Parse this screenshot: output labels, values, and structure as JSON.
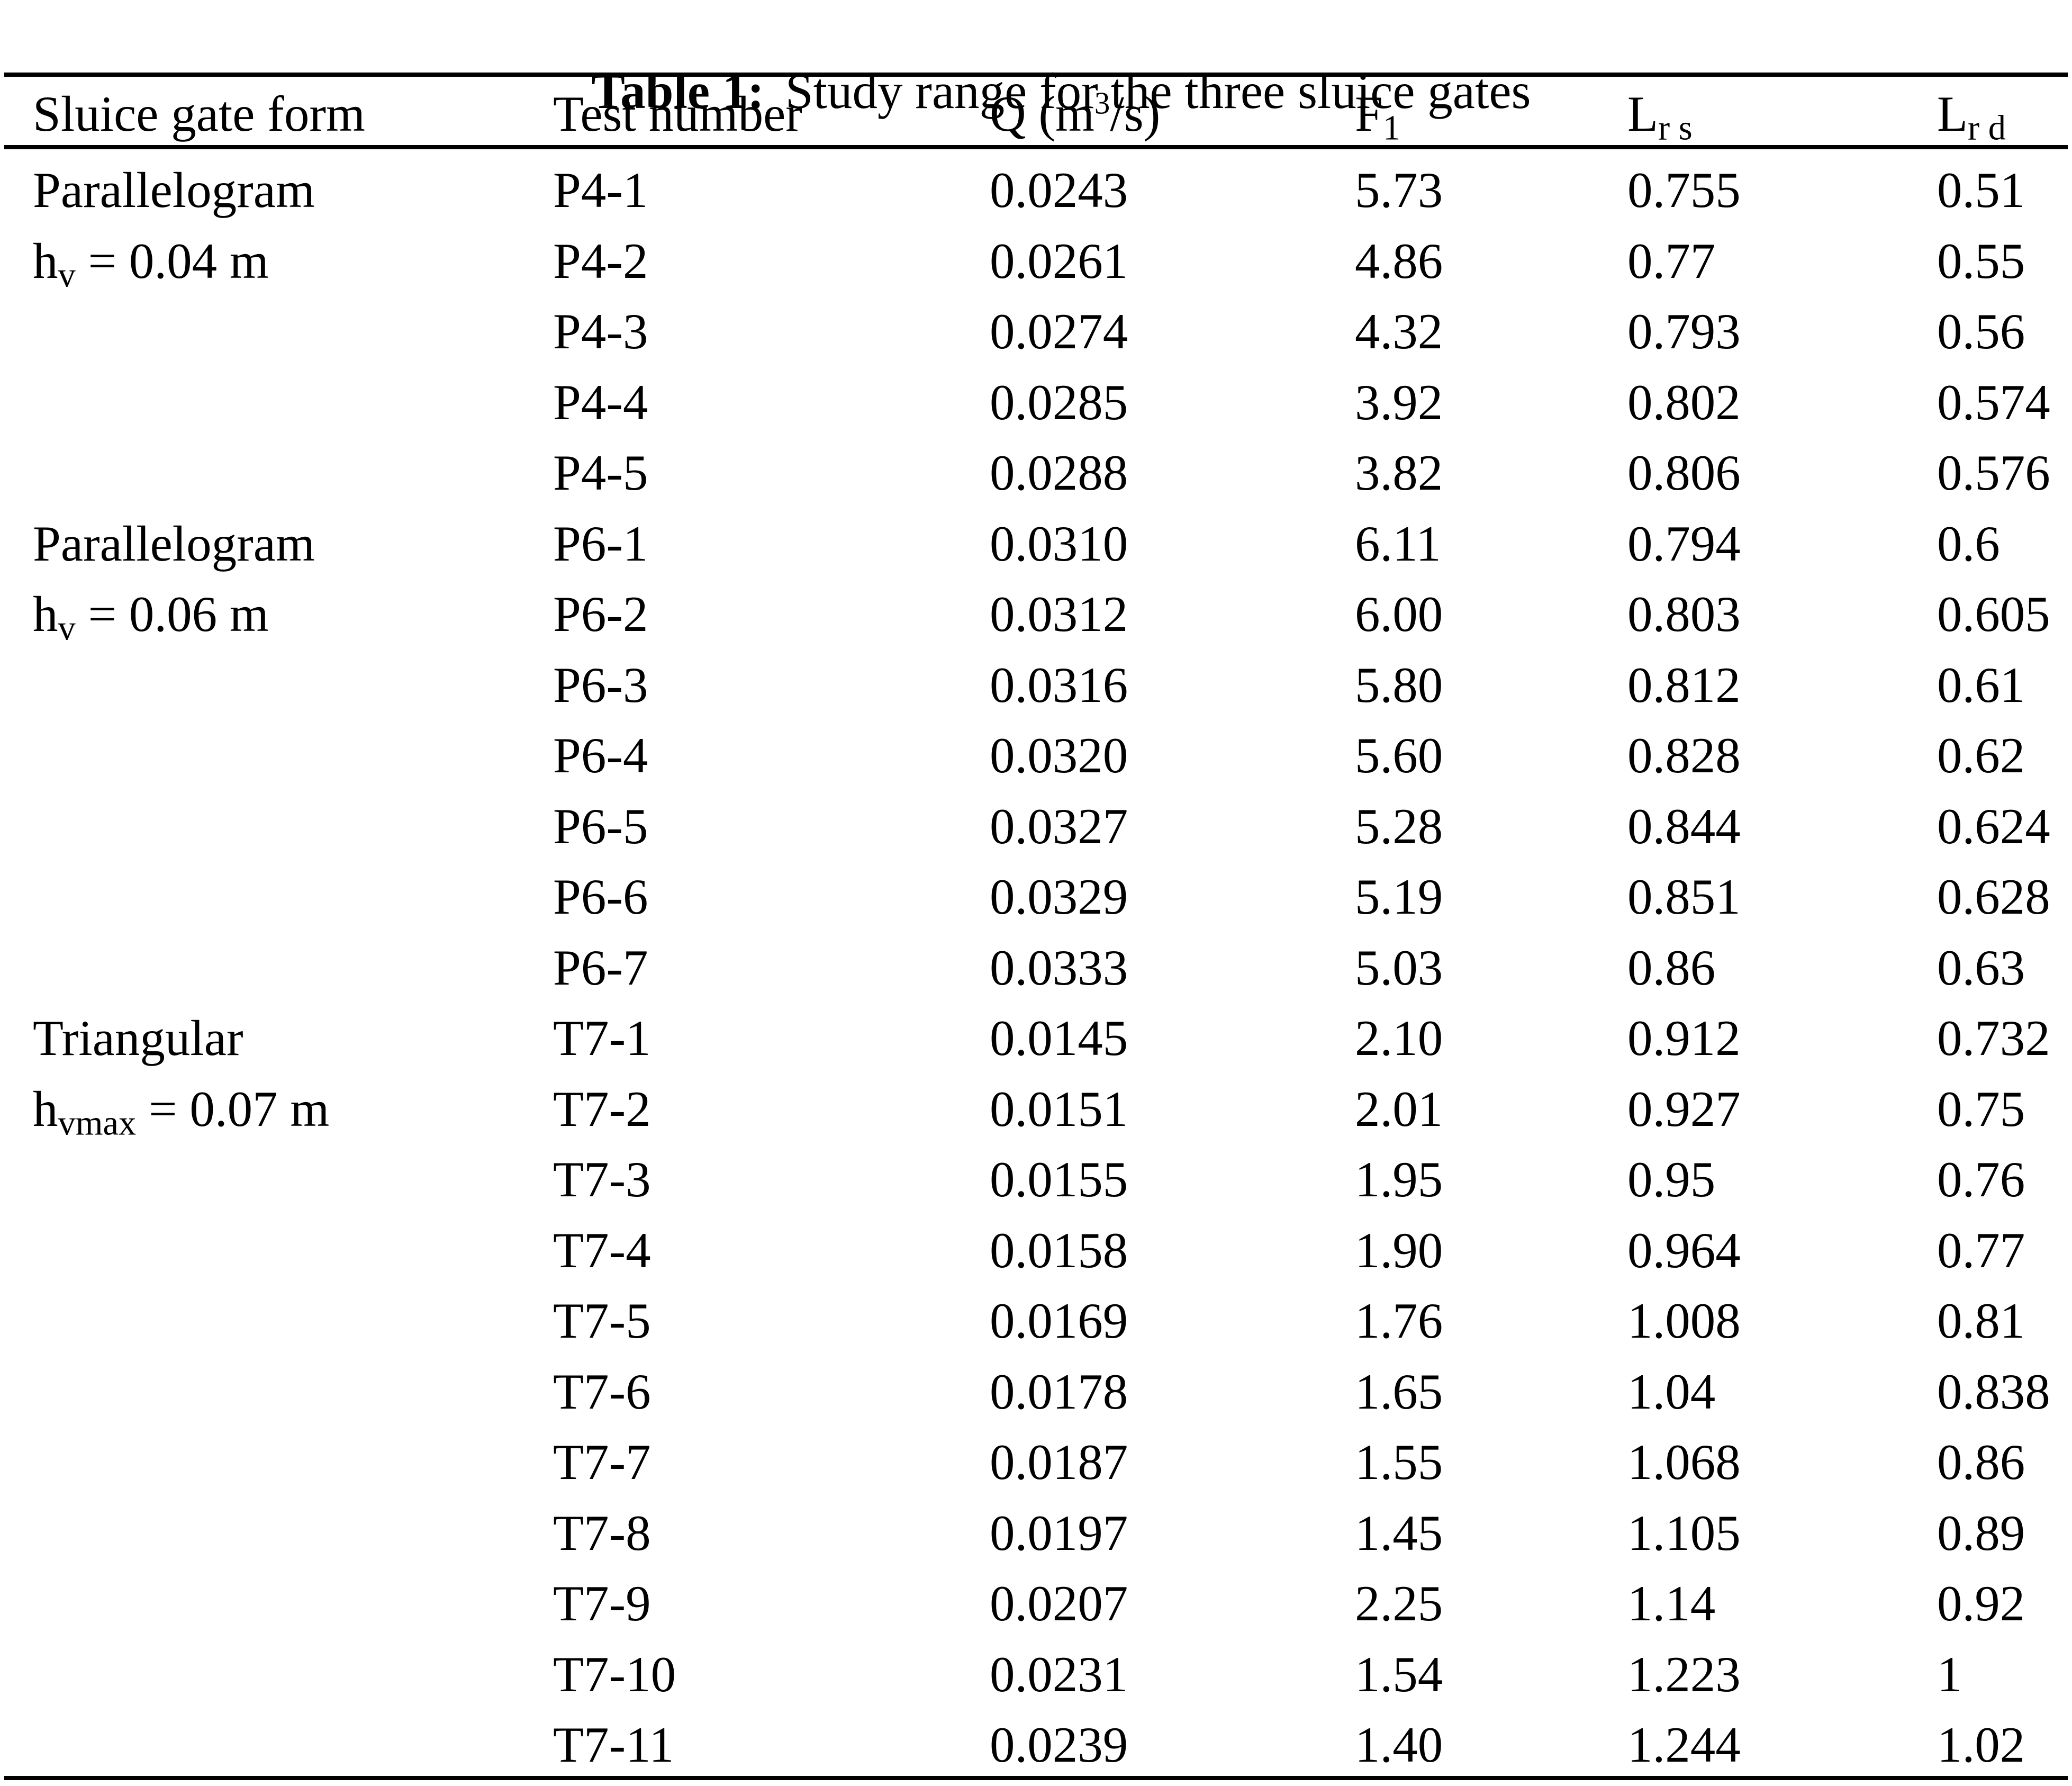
{
  "colors": {
    "background": "#ffffff",
    "text": "#000000",
    "rule": "#000000"
  },
  "title": {
    "label": "Table 1:",
    "text": "Study range for the three sluice gates"
  },
  "table": {
    "header": {
      "form": "Sluice gate form",
      "test": "Test number",
      "q_pre": "Q (m",
      "q_sup": "3",
      "q_post": "/s)",
      "f_base": "F",
      "f_sub": "1",
      "l_base": "L",
      "lrs_sub": "r s",
      "lrd_sub": "r d"
    },
    "groups": [
      {
        "form": "Parallelogram",
        "param": "hv = 0.04 m"
      },
      {
        "form": "Parallelogram",
        "param": "hv = 0.06 m"
      },
      {
        "form": "Triangular",
        "param": "hvmax = 0.07 m"
      }
    ],
    "rows": [
      {
        "form": "Parallelogram",
        "test": "P4-1",
        "q": "0.0243",
        "f1": "5.73",
        "lrs": "0.755",
        "lrd": "0.51"
      },
      {
        "form_base": "h",
        "form_sub": "v",
        "form_rest": " = 0.04 m",
        "test": "P4-2",
        "q": "0.0261",
        "f1": "4.86",
        "lrs": "0.77",
        "lrd": "0.55"
      },
      {
        "test": "P4-3",
        "q": "0.0274",
        "f1": "4.32",
        "lrs": "0.793",
        "lrd": "0.56"
      },
      {
        "test": "P4-4",
        "q": "0.0285",
        "f1": "3.92",
        "lrs": "0.802",
        "lrd": "0.574"
      },
      {
        "test": "P4-5",
        "q": "0.0288",
        "f1": "3.82",
        "lrs": "0.806",
        "lrd": "0.576"
      },
      {
        "form": "Parallelogram",
        "test": "P6-1",
        "q": "0.0310",
        "f1": "6.11",
        "lrs": "0.794",
        "lrd": "0.6"
      },
      {
        "form_base": "h",
        "form_sub": "v",
        "form_rest": " = 0.06 m",
        "test": "P6-2",
        "q": "0.0312",
        "f1": "6.00",
        "lrs": "0.803",
        "lrd": "0.605"
      },
      {
        "test": "P6-3",
        "q": "0.0316",
        "f1": "5.80",
        "lrs": "0.812",
        "lrd": "0.61"
      },
      {
        "test": "P6-4",
        "q": "0.0320",
        "f1": "5.60",
        "lrs": "0.828",
        "lrd": "0.62"
      },
      {
        "test": "P6-5",
        "q": "0.0327",
        "f1": "5.28",
        "lrs": "0.844",
        "lrd": "0.624"
      },
      {
        "test": "P6-6",
        "q": "0.0329",
        "f1": "5.19",
        "lrs": "0.851",
        "lrd": "0.628"
      },
      {
        "test": "P6-7",
        "q": "0.0333",
        "f1": "5.03",
        "lrs": "0.86",
        "lrd": "0.63"
      },
      {
        "form": "Triangular",
        "test": "T7-1",
        "q": "0.0145",
        "f1": "2.10",
        "lrs": "0.912",
        "lrd": "0.732"
      },
      {
        "form_base": "h",
        "form_sub": "vmax",
        "form_rest": " = 0.07 m",
        "test": "T7-2",
        "q": "0.0151",
        "f1": "2.01",
        "lrs": "0.927",
        "lrd": "0.75"
      },
      {
        "test": "T7-3",
        "q": "0.0155",
        "f1": "1.95",
        "lrs": "0.95",
        "lrd": "0.76"
      },
      {
        "test": "T7-4",
        "q": "0.0158",
        "f1": "1.90",
        "lrs": "0.964",
        "lrd": "0.77"
      },
      {
        "test": "T7-5",
        "q": "0.0169",
        "f1": "1.76",
        "lrs": "1.008",
        "lrd": "0.81"
      },
      {
        "test": "T7-6",
        "q": "0.0178",
        "f1": "1.65",
        "lrs": "1.04",
        "lrd": "0.838"
      },
      {
        "test": "T7-7",
        "q": "0.0187",
        "f1": "1.55",
        "lrs": "1.068",
        "lrd": "0.86"
      },
      {
        "test": "T7-8",
        "q": "0.0197",
        "f1": "1.45",
        "lrs": "1.105",
        "lrd": "0.89"
      },
      {
        "test": "T7-9",
        "q": "0.0207",
        "f1": "2.25",
        "lrs": "1.14",
        "lrd": "0.92"
      },
      {
        "test": "T7-10",
        "q": "0.0231",
        "f1": "1.54",
        "lrs": "1.223",
        "lrd": "1"
      },
      {
        "test": "T7-11",
        "q": "0.0239",
        "f1": "1.40",
        "lrs": "1.244",
        "lrd": "1.02"
      }
    ]
  }
}
